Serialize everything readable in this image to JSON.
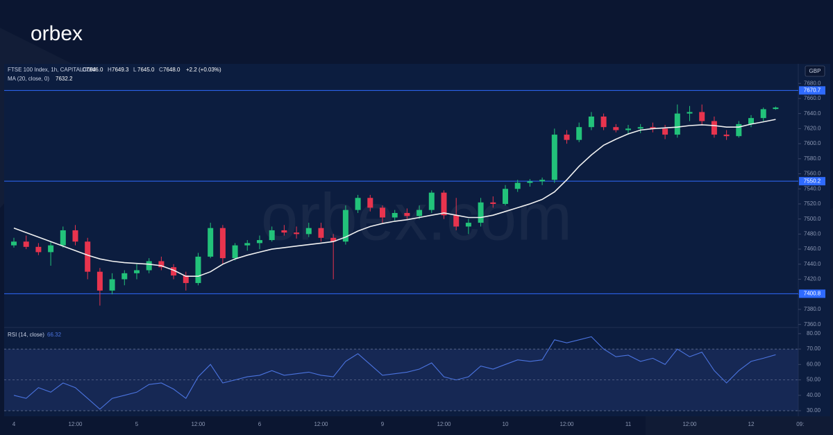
{
  "brand": {
    "logo": "orbex",
    "watermark": "orbex.com"
  },
  "chart_data": {
    "type": "candlestick",
    "title": "FTSE 100 Index, 1h, CAPITALCOM",
    "ohlc_legend": [
      [
        "O",
        "7646.0"
      ],
      [
        "H",
        "7649.3"
      ],
      [
        "L",
        "7645.0"
      ],
      [
        "C",
        "7648.0"
      ]
    ],
    "change": "+2.2 (+0.03%)",
    "currency": "GBP",
    "categories": [
      "4",
      null,
      null,
      null,
      null,
      "12:00",
      null,
      null,
      null,
      null,
      "5",
      null,
      null,
      null,
      null,
      "12:00",
      null,
      null,
      null,
      null,
      "6",
      null,
      null,
      null,
      null,
      "12:00",
      null,
      null,
      null,
      null,
      "9",
      null,
      null,
      null,
      null,
      "12:00",
      null,
      null,
      null,
      null,
      "10",
      null,
      null,
      null,
      null,
      "12:00",
      null,
      null,
      null,
      null,
      "11",
      null,
      null,
      null,
      null,
      "12:00",
      null,
      null,
      null,
      null,
      "12",
      null,
      null,
      null,
      "09:"
    ],
    "open": [
      7465,
      7470,
      7463,
      7456,
      7465,
      7485,
      7470,
      7430,
      7405,
      7420,
      7428,
      7432,
      7444,
      7436,
      7425,
      7415,
      7450,
      7488,
      7448,
      7465,
      7468,
      7472,
      7485,
      7482,
      7480,
      7488,
      7475,
      7470,
      7512,
      7528,
      7515,
      7502,
      7508,
      7504,
      7512,
      7535,
      7505,
      7490,
      7495,
      7522,
      7520,
      7540,
      7548,
      7550,
      7552,
      7612,
      7605,
      7622,
      7636,
      7622,
      7618,
      7620,
      7622,
      7620,
      7612,
      7640,
      7642,
      7630,
      7612,
      7610,
      7626,
      7634,
      7646,
      null,
      null
    ],
    "high": [
      7475,
      7478,
      7468,
      7470,
      7490,
      7492,
      7475,
      7435,
      7428,
      7432,
      7440,
      7448,
      7450,
      7440,
      7430,
      7455,
      7495,
      7492,
      7468,
      7472,
      7478,
      7490,
      7492,
      7490,
      7495,
      7495,
      7480,
      7518,
      7532,
      7532,
      7518,
      7512,
      7514,
      7518,
      7538,
      7538,
      7528,
      7500,
      7528,
      7530,
      7545,
      7552,
      7553,
      7555,
      7620,
      7618,
      7628,
      7642,
      7640,
      7626,
      7625,
      7626,
      7628,
      7625,
      7652,
      7650,
      7652,
      7636,
      7618,
      7630,
      7638,
      7648,
      7649.3,
      null,
      null
    ],
    "low": [
      7462,
      7460,
      7452,
      7438,
      7462,
      7465,
      7420,
      7385,
      7400,
      7412,
      7420,
      7428,
      7432,
      7420,
      7405,
      7412,
      7448,
      7440,
      7445,
      7458,
      7460,
      7470,
      7478,
      7474,
      7476,
      7470,
      7420,
      7466,
      7508,
      7510,
      7495,
      7498,
      7500,
      7500,
      7508,
      7500,
      7485,
      7480,
      7490,
      7515,
      7518,
      7536,
      7543,
      7545,
      7548,
      7600,
      7602,
      7618,
      7618,
      7615,
      7612,
      7614,
      7615,
      7606,
      7608,
      7630,
      7625,
      7608,
      7605,
      7608,
      7622,
      7630,
      7645,
      null,
      null
    ],
    "close": [
      7470,
      7463,
      7456,
      7465,
      7485,
      7470,
      7430,
      7405,
      7420,
      7428,
      7432,
      7444,
      7436,
      7425,
      7415,
      7450,
      7488,
      7448,
      7465,
      7468,
      7472,
      7485,
      7482,
      7480,
      7488,
      7475,
      7470,
      7512,
      7528,
      7515,
      7502,
      7508,
      7504,
      7512,
      7535,
      7505,
      7490,
      7495,
      7522,
      7520,
      7540,
      7548,
      7550,
      7552,
      7612,
      7605,
      7622,
      7636,
      7622,
      7618,
      7620,
      7622,
      7620,
      7612,
      7640,
      7642,
      7630,
      7612,
      7610,
      7626,
      7634,
      7645.8,
      7648,
      null,
      null
    ],
    "up_color": "#22c27a",
    "down_color": "#e8344e",
    "ylim": [
      7356,
      7706
    ],
    "yticks": [
      {
        "value": 7360,
        "label": "7360.0"
      },
      {
        "value": 7380,
        "label": "7380.0"
      },
      {
        "value": 7400,
        "label": "7400.0"
      },
      {
        "value": 7420,
        "label": "7420.0"
      },
      {
        "value": 7440,
        "label": "7440.0"
      },
      {
        "value": 7460,
        "label": "7460.0"
      },
      {
        "value": 7480,
        "label": "7480.0"
      },
      {
        "value": 7500,
        "label": "7500.0"
      },
      {
        "value": 7520,
        "label": "7520.0"
      },
      {
        "value": 7540,
        "label": "7540.0"
      },
      {
        "value": 7560,
        "label": "7560.0"
      },
      {
        "value": 7580,
        "label": "7580.0"
      },
      {
        "value": 7600,
        "label": "7600.0"
      },
      {
        "value": 7620,
        "label": "7620.0"
      },
      {
        "value": 7640,
        "label": "7640.0"
      },
      {
        "value": 7660,
        "label": "7660.0"
      },
      {
        "value": 7680,
        "label": "7680.0"
      }
    ],
    "levels": [
      7670.7,
      7550.2,
      7400.8
    ],
    "level_color": "#2f6bff",
    "ma": {
      "name": "MA (20, close, 0)",
      "color": "#f2f2f2",
      "last_label": "7632.2",
      "values": [
        7488,
        7482,
        7476,
        7470,
        7464,
        7458,
        7452,
        7447,
        7444,
        7442,
        7441,
        7440,
        7438,
        7432,
        7424,
        7424,
        7430,
        7440,
        7447,
        7452,
        7456,
        7460,
        7462,
        7464,
        7466,
        7468,
        7470,
        7476,
        7484,
        7490,
        7494,
        7497,
        7499,
        7502,
        7505,
        7508,
        7505,
        7502,
        7502,
        7505,
        7510,
        7515,
        7520,
        7526,
        7536,
        7552,
        7570,
        7585,
        7598,
        7606,
        7613,
        7618,
        7620,
        7621,
        7622,
        7624,
        7625,
        7624,
        7622,
        7622,
        7626,
        7629,
        7632.2,
        null,
        null
      ]
    },
    "rsi": {
      "name": "RSI (14, close)",
      "color": "#4b74e0",
      "last_label": "66.32",
      "values": [
        40,
        38,
        45,
        42,
        48,
        45,
        38,
        31,
        38,
        40,
        42,
        47,
        48,
        44,
        38,
        52,
        60,
        48,
        50,
        52,
        53,
        56,
        53,
        54,
        55,
        53,
        52,
        62,
        67,
        60,
        53,
        54,
        55,
        57,
        61,
        52,
        50,
        52,
        59,
        57,
        60,
        63,
        62,
        63,
        76,
        74,
        76,
        78,
        70,
        65,
        66,
        62,
        64,
        60,
        70,
        65,
        68,
        56,
        48,
        56,
        62,
        64,
        66.32,
        null,
        null
      ],
      "ylim": [
        26.4,
        84
      ],
      "yticks": [
        {
          "value": 30,
          "label": "30.00"
        },
        {
          "value": 40,
          "label": "40.00"
        },
        {
          "value": 50,
          "label": "50.00"
        },
        {
          "value": 60,
          "label": "60.00"
        },
        {
          "value": 70,
          "label": "70.00"
        },
        {
          "value": 80,
          "label": "80.00"
        }
      ],
      "band": [
        30,
        70
      ],
      "levels": [
        70,
        50,
        30
      ]
    }
  }
}
